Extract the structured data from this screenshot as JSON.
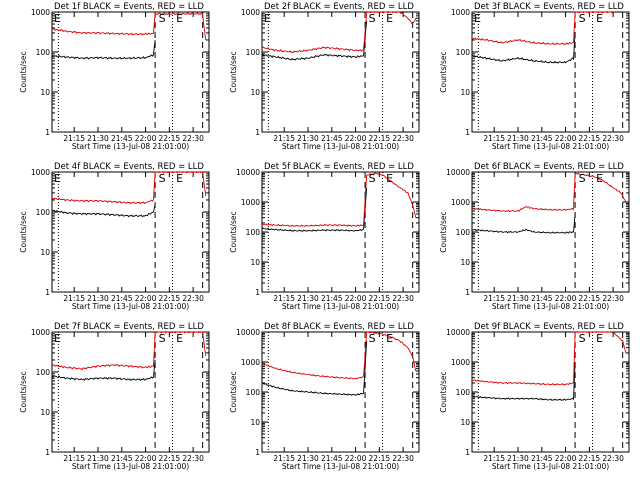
{
  "chart_data": [
    {
      "type": "line",
      "title": "Det 1f BLACK = Events, RED = LLD",
      "xlabel": "Start Time (13-Jul-08 21:01:00)",
      "ylabel": "Counts/sec",
      "ylim": [
        1,
        1000
      ],
      "y_ticks": [
        "1",
        "10",
        "100",
        "1000"
      ],
      "x_ticks": [
        "21:15",
        "21:30",
        "21:45",
        "22:00",
        "22:15",
        "22:30"
      ],
      "x_range": [
        "21:01",
        "22:40"
      ],
      "markers": [
        "E",
        "S",
        "E"
      ],
      "series": [
        {
          "color": "#000000",
          "x": [
            "21:01",
            "21:10",
            "21:20",
            "21:30",
            "21:40",
            "21:50",
            "22:00",
            "22:05",
            "22:06"
          ],
          "y": [
            80,
            75,
            70,
            72,
            70,
            70,
            72,
            85,
            200
          ]
        },
        {
          "color": "#dd0000",
          "x": [
            "21:01",
            "21:10",
            "21:20",
            "21:30",
            "21:40",
            "21:50",
            "22:00",
            "22:05",
            "22:06",
            "22:36",
            "22:37",
            "22:38"
          ],
          "y": [
            380,
            330,
            300,
            300,
            290,
            280,
            280,
            290,
            900,
            900,
            400,
            200
          ]
        }
      ]
    },
    {
      "type": "line",
      "title": "Det 2f BLACK = Events, RED = LLD",
      "xlabel": "Start Time (13-Jul-08 21:01:00)",
      "ylabel": "Counts/sec",
      "ylim": [
        1,
        1000
      ],
      "y_ticks": [
        "1",
        "10",
        "100",
        "1000"
      ],
      "x_ticks": [
        "21:15",
        "21:30",
        "21:45",
        "22:00",
        "22:15",
        "22:30"
      ],
      "x_range": [
        "21:01",
        "22:40"
      ],
      "markers": [
        "E",
        "S",
        "E"
      ],
      "series": [
        {
          "color": "#000000",
          "x": [
            "21:01",
            "21:10",
            "21:20",
            "21:30",
            "21:40",
            "21:50",
            "22:00",
            "22:05",
            "22:07"
          ],
          "y": [
            85,
            75,
            65,
            70,
            85,
            80,
            75,
            80,
            600
          ]
        },
        {
          "color": "#dd0000",
          "x": [
            "21:01",
            "21:10",
            "21:20",
            "21:30",
            "21:40",
            "21:50",
            "22:00",
            "22:05",
            "22:07",
            "22:15",
            "22:28",
            "22:33",
            "22:36",
            "22:38"
          ],
          "y": [
            130,
            110,
            100,
            110,
            130,
            120,
            110,
            110,
            1000,
            1000,
            1000,
            700,
            500,
            700
          ]
        }
      ]
    },
    {
      "type": "line",
      "title": "Det 3f BLACK = Events, RED = LLD",
      "xlabel": "Start Time (13-Jul-08 21:01:00)",
      "ylabel": "Counts/sec",
      "ylim": [
        1,
        1000
      ],
      "y_ticks": [
        "1",
        "10",
        "100",
        "1000"
      ],
      "x_ticks": [
        "21:15",
        "21:30",
        "21:45",
        "22:00",
        "22:15",
        "22:30"
      ],
      "x_range": [
        "21:01",
        "22:40"
      ],
      "markers": [
        "E",
        "S",
        "E"
      ],
      "series": [
        {
          "color": "#000000",
          "x": [
            "21:01",
            "21:10",
            "21:20",
            "21:30",
            "21:40",
            "21:50",
            "22:00",
            "22:05",
            "22:06"
          ],
          "y": [
            80,
            70,
            60,
            70,
            60,
            55,
            55,
            70,
            300
          ]
        },
        {
          "color": "#dd0000",
          "x": [
            "21:01",
            "21:10",
            "21:20",
            "21:30",
            "21:40",
            "21:50",
            "22:00",
            "22:05",
            "22:06",
            "22:30"
          ],
          "y": [
            220,
            200,
            170,
            200,
            170,
            160,
            160,
            170,
            1000,
            1000
          ]
        }
      ]
    },
    {
      "type": "line",
      "title": "Det 4f BLACK = Events, RED = LLD",
      "xlabel": "Start Time (13-Jul-08 21:01:00)",
      "ylabel": "Counts/sec",
      "ylim": [
        1,
        1000
      ],
      "y_ticks": [
        "1",
        "10",
        "100",
        "1000"
      ],
      "x_ticks": [
        "21:15",
        "21:30",
        "21:45",
        "22:00",
        "22:15",
        "22:30"
      ],
      "x_range": [
        "21:01",
        "22:40"
      ],
      "markers": [
        "E",
        "S",
        "E"
      ],
      "series": [
        {
          "color": "#000000",
          "x": [
            "21:01",
            "21:10",
            "21:20",
            "21:30",
            "21:40",
            "21:50",
            "22:00",
            "22:05",
            "22:06"
          ],
          "y": [
            110,
            95,
            90,
            90,
            85,
            80,
            80,
            100,
            150
          ]
        },
        {
          "color": "#dd0000",
          "x": [
            "21:01",
            "21:10",
            "21:20",
            "21:30",
            "21:40",
            "21:50",
            "22:00",
            "22:05",
            "22:06",
            "22:36",
            "22:37",
            "22:38"
          ],
          "y": [
            220,
            200,
            190,
            190,
            180,
            170,
            170,
            200,
            1000,
            1000,
            500,
            250
          ]
        }
      ]
    },
    {
      "type": "line",
      "title": "Det 5f BLACK = Events, RED = LLD",
      "xlabel": "Start Time (13-Jul-08 21:01:00)",
      "ylabel": "Counts/sec",
      "ylim": [
        1,
        10000
      ],
      "y_ticks": [
        "1",
        "10",
        "100",
        "1000",
        "10000"
      ],
      "x_ticks": [
        "21:15",
        "21:30",
        "21:45",
        "22:00",
        "22:15",
        "22:30"
      ],
      "x_range": [
        "21:01",
        "22:40"
      ],
      "markers": [
        "S",
        "E"
      ],
      "series": [
        {
          "color": "#000000",
          "x": [
            "21:01",
            "21:10",
            "21:20",
            "21:30",
            "21:40",
            "21:50",
            "22:00",
            "22:05",
            "22:07"
          ],
          "y": [
            130,
            120,
            110,
            110,
            115,
            115,
            110,
            120,
            3000
          ]
        },
        {
          "color": "#dd0000",
          "x": [
            "21:01",
            "21:10",
            "21:20",
            "21:30",
            "21:40",
            "21:50",
            "22:00",
            "22:05",
            "22:07",
            "22:13",
            "22:17",
            "22:22",
            "22:28",
            "22:33",
            "22:36",
            "22:38"
          ],
          "y": [
            180,
            170,
            160,
            160,
            170,
            170,
            160,
            170,
            8000,
            9000,
            8000,
            5000,
            3000,
            2000,
            800,
            300
          ]
        }
      ]
    },
    {
      "type": "line",
      "title": "Det 6f BLACK = Events, RED = LLD",
      "xlabel": "Start Time (13-Jul-08 21:01:00)",
      "ylabel": "Counts/sec",
      "ylim": [
        1,
        10000
      ],
      "y_ticks": [
        "1",
        "10",
        "100",
        "1000",
        "10000"
      ],
      "x_ticks": [
        "21:15",
        "21:30",
        "21:45",
        "22:00",
        "22:15",
        "22:30"
      ],
      "x_range": [
        "21:01",
        "22:40"
      ],
      "markers": [
        "S",
        "E"
      ],
      "series": [
        {
          "color": "#000000",
          "x": [
            "21:01",
            "21:10",
            "21:20",
            "21:30",
            "21:35",
            "21:40",
            "21:50",
            "22:00",
            "22:05",
            "22:06"
          ],
          "y": [
            120,
            110,
            100,
            100,
            120,
            100,
            95,
            95,
            100,
            400
          ]
        },
        {
          "color": "#dd0000",
          "x": [
            "21:01",
            "21:10",
            "21:20",
            "21:30",
            "21:35",
            "21:40",
            "21:50",
            "22:00",
            "22:05",
            "22:06",
            "22:12",
            "22:18",
            "22:24",
            "22:30",
            "22:35",
            "22:38"
          ],
          "y": [
            600,
            550,
            500,
            500,
            700,
            600,
            550,
            550,
            600,
            9000,
            8000,
            7000,
            5000,
            3000,
            2000,
            1000
          ]
        }
      ]
    },
    {
      "type": "line",
      "title": "Det 7f BLACK = Events, RED = LLD",
      "xlabel": "Start Time (13-Jul-08 21:01:00)",
      "ylabel": "Counts/sec",
      "ylim": [
        1,
        1000
      ],
      "y_ticks": [
        "1",
        "10",
        "100",
        "1000"
      ],
      "x_ticks": [
        "21:15",
        "21:30",
        "21:45",
        "22:00",
        "22:15",
        "22:30"
      ],
      "x_range": [
        "21:01",
        "22:40"
      ],
      "markers": [
        "E",
        "S",
        "E"
      ],
      "series": [
        {
          "color": "#000000",
          "x": [
            "21:01",
            "21:10",
            "21:20",
            "21:30",
            "21:40",
            "21:50",
            "22:00",
            "22:05",
            "22:06"
          ],
          "y": [
            80,
            70,
            65,
            70,
            70,
            65,
            65,
            75,
            200
          ]
        },
        {
          "color": "#dd0000",
          "x": [
            "21:01",
            "21:10",
            "21:20",
            "21:30",
            "21:40",
            "21:50",
            "22:00",
            "22:05",
            "22:06",
            "22:36",
            "22:37",
            "22:38"
          ],
          "y": [
            150,
            130,
            120,
            140,
            150,
            140,
            130,
            140,
            1000,
            1000,
            500,
            250
          ]
        }
      ]
    },
    {
      "type": "line",
      "title": "Det 8f BLACK = Events, RED = LLD",
      "xlabel": "Start Time (13-Jul-08 21:01:00)",
      "ylabel": "Counts/sec",
      "ylim": [
        1,
        10000
      ],
      "y_ticks": [
        "1",
        "10",
        "100",
        "1000",
        "10000"
      ],
      "x_ticks": [
        "21:15",
        "21:30",
        "21:45",
        "22:00",
        "22:15",
        "22:30"
      ],
      "x_range": [
        "21:01",
        "22:40"
      ],
      "markers": [
        "S",
        "E"
      ],
      "series": [
        {
          "color": "#000000",
          "x": [
            "21:01",
            "21:10",
            "21:20",
            "21:30",
            "21:40",
            "21:50",
            "22:00",
            "22:05",
            "22:07"
          ],
          "y": [
            200,
            140,
            110,
            100,
            90,
            85,
            80,
            90,
            5000
          ]
        },
        {
          "color": "#dd0000",
          "x": [
            "21:01",
            "21:10",
            "21:20",
            "21:30",
            "21:40",
            "21:50",
            "22:00",
            "22:05",
            "22:07",
            "22:15",
            "22:22",
            "22:28",
            "22:33",
            "22:36",
            "22:38"
          ],
          "y": [
            900,
            600,
            450,
            380,
            330,
            300,
            280,
            320,
            10000,
            9000,
            7000,
            5000,
            3000,
            1500,
            500
          ]
        }
      ]
    },
    {
      "type": "line",
      "title": "Det 9f BLACK = Events, RED = LLD",
      "xlabel": "Start Time (13-Jul-08 21:01:00)",
      "ylabel": "Counts/sec",
      "ylim": [
        1,
        10000
      ],
      "y_ticks": [
        "1",
        "10",
        "100",
        "1000",
        "10000"
      ],
      "x_ticks": [
        "21:15",
        "21:30",
        "21:45",
        "22:00",
        "22:15",
        "22:30"
      ],
      "x_range": [
        "21:01",
        "22:40"
      ],
      "markers": [
        "S",
        "E"
      ],
      "series": [
        {
          "color": "#000000",
          "x": [
            "21:01",
            "21:10",
            "21:20",
            "21:30",
            "21:40",
            "21:50",
            "22:00",
            "22:05",
            "22:06"
          ],
          "y": [
            70,
            65,
            60,
            60,
            60,
            55,
            55,
            60,
            1000
          ]
        },
        {
          "color": "#dd0000",
          "x": [
            "21:01",
            "21:10",
            "21:20",
            "21:30",
            "21:40",
            "21:50",
            "22:00",
            "22:05",
            "22:06",
            "22:30",
            "22:36",
            "22:38"
          ],
          "y": [
            250,
            220,
            200,
            200,
            190,
            180,
            180,
            200,
            10000,
            10000,
            5000,
            2000
          ]
        }
      ]
    }
  ]
}
